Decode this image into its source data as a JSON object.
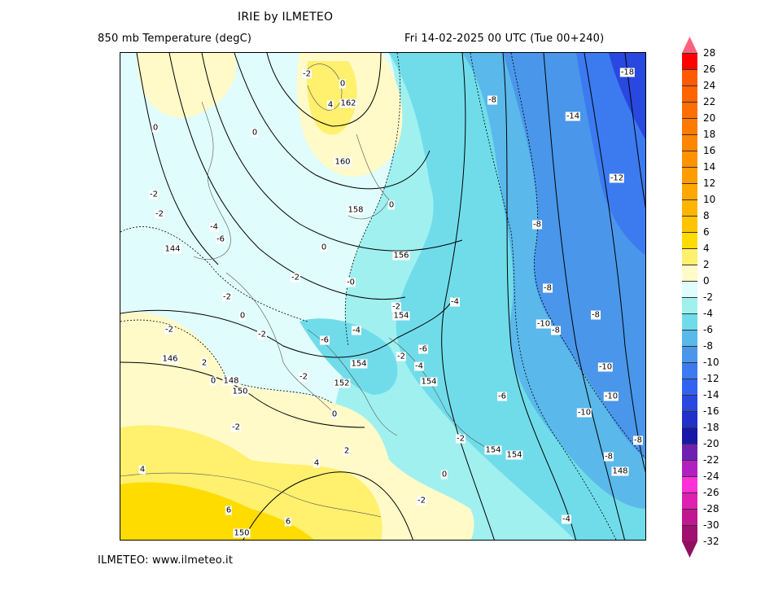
{
  "header": {
    "title": "IRIE by ILMETEO",
    "variable": "850 mb Temperature (degC)",
    "datetime": "Fri 14-02-2025 00 UTC (Tue 00+240)"
  },
  "footer": {
    "credit": "ILMETEO: www.ilmeteo.it"
  },
  "map": {
    "labels": [
      "-2",
      "0",
      "4",
      "162",
      "0",
      "0",
      "160",
      "-2",
      "-2",
      "-4",
      "-6",
      "0",
      "158",
      "144",
      "0",
      "156",
      "-2",
      "-0",
      "-2",
      "0",
      "-2",
      "154",
      "-4",
      "-2",
      "-2",
      "-4",
      "-6",
      "146",
      "2",
      "154",
      "-2",
      "-4",
      "-6",
      "148",
      "0",
      "150",
      "-2",
      "152",
      "154",
      "0",
      "-2",
      "-2",
      "154",
      "154",
      "2",
      "4",
      "4",
      "-2",
      "6",
      "6",
      "150",
      "-4",
      "-8",
      "-14",
      "-18",
      "-12",
      "-8",
      "-8",
      "-8",
      "-10",
      "-8",
      "-10",
      "-10",
      "-10",
      "-6",
      "-8",
      "-8",
      "148",
      "0"
    ]
  },
  "legend": {
    "ticks": [
      "28",
      "26",
      "24",
      "22",
      "20",
      "18",
      "16",
      "14",
      "12",
      "10",
      "8",
      "6",
      "4",
      "2",
      "0",
      "-2",
      "-4",
      "-6",
      "-8",
      "-10",
      "-12",
      "-14",
      "-16",
      "-18",
      "-20",
      "-22",
      "-24",
      "-26",
      "-28",
      "-30",
      "-32"
    ],
    "colors": [
      "#ff0000",
      "#ff5a00",
      "#ff6400",
      "#ff6e00",
      "#ff7a00",
      "#ff8600",
      "#ff9200",
      "#ff9c00",
      "#ffa800",
      "#ffb400",
      "#ffc400",
      "#ffdc00",
      "#fff06e",
      "#fffac8",
      "#e0fcfc",
      "#a0f0f0",
      "#70dcea",
      "#5ab8ea",
      "#4a96ea",
      "#3c7af0",
      "#3262f0",
      "#2848e0",
      "#2030c8",
      "#1818a8",
      "#7020b0",
      "#b020c0",
      "#ff30d8",
      "#e020b0",
      "#c01890",
      "#a01070"
    ],
    "over_color": "#ff6080",
    "under_color": "#901060"
  }
}
